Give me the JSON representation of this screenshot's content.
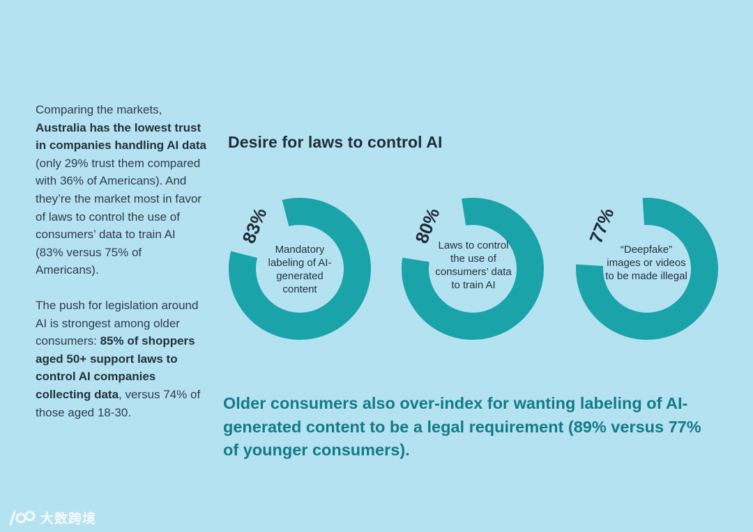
{
  "left_panel": {
    "p1_part1": "Comparing the markets, ",
    "p1_bold": "Australia has the lowest trust in companies handling AI data",
    "p1_part2": " (only 29% trust them compared with 36% of Americans). And they’re the market most in favor of laws to control the use of consumers’ data to train AI (83% versus 75% of Americans).",
    "p2_part1": "The push for legislation around AI is strongest among older consumers: ",
    "p2_bold": "85% of shoppers aged 50+ support laws to control AI companies collecting data",
    "p2_part2": ", versus 74% of those aged 18-30."
  },
  "chart_data": {
    "type": "pie",
    "title": "Desire for laws to control AI",
    "categories": [
      "Mandatory labeling of AI-generated content",
      "Laws to control the use of consumers’ data to train AI",
      "“Deepfake” images or videos to be made illegal"
    ],
    "values": [
      83,
      80,
      77
    ],
    "value_labels": [
      "83%",
      "80%",
      "77%"
    ],
    "ylim": [
      0,
      100
    ]
  },
  "donut_labels": [
    "Mandatory labeling of AI-generated content",
    "Laws to control the use of consumers’ data to train AI",
    "“Deepfake” images or videos to be made illegal"
  ],
  "footer_note": "Older consumers also over-index for wanting labeling of AI-generated content to be a legal requirement (89% versus 77% of younger consumers).",
  "watermark": {
    "logo_text": "100",
    "text": "大数跨境"
  },
  "colors": {
    "background": "#b5e2f0",
    "donut": "#1aa3a8",
    "accent_text": "#127a88"
  }
}
